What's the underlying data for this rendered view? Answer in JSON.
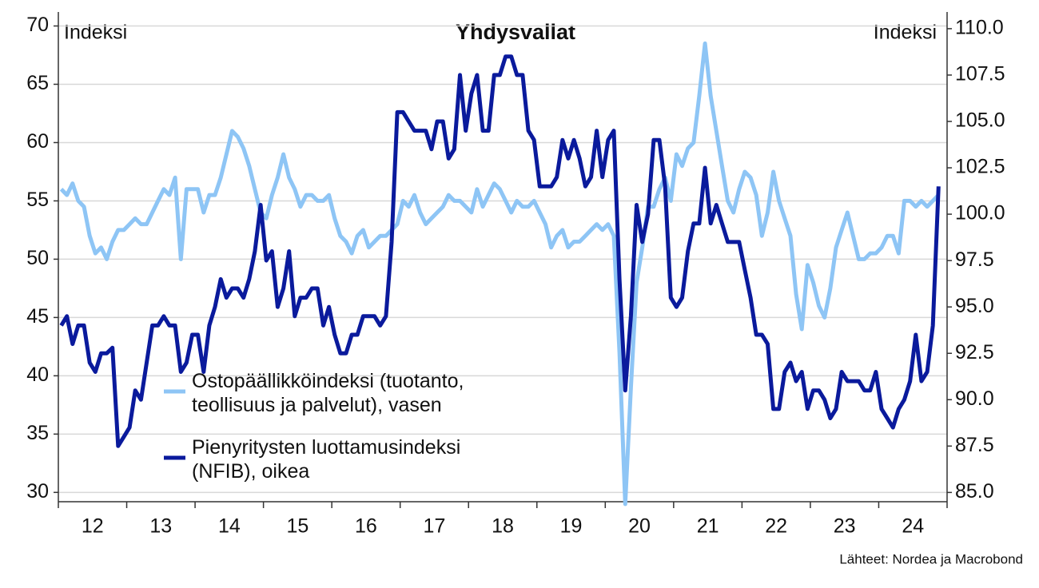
{
  "chart_data": {
    "type": "line",
    "title": "Yhdysvallat",
    "y_label": "Indeksi",
    "y2_label": "Indeksi",
    "source": "Lähteet: Nordea ja Macrobond",
    "categories": [
      null,
      null,
      null,
      null,
      null,
      null,
      "12",
      null,
      null,
      null,
      null,
      null,
      null,
      null,
      null,
      null,
      null,
      null,
      "13",
      null,
      null,
      null,
      null,
      null,
      null,
      null,
      null,
      null,
      null,
      null,
      "14",
      null,
      null,
      null,
      null,
      null,
      null,
      null,
      null,
      null,
      null,
      null,
      "15",
      null,
      null,
      null,
      null,
      null,
      null,
      null,
      null,
      null,
      null,
      null,
      "16",
      null,
      null,
      null,
      null,
      null,
      null,
      null,
      null,
      null,
      null,
      null,
      "17",
      null,
      null,
      null,
      null,
      null,
      null,
      null,
      null,
      null,
      null,
      null,
      "18",
      null,
      null,
      null,
      null,
      null,
      null,
      null,
      null,
      null,
      null,
      null,
      "19",
      null,
      null,
      null,
      null,
      null,
      null,
      null,
      null,
      null,
      null,
      null,
      "20",
      null,
      null,
      null,
      null,
      null,
      null,
      null,
      null,
      null,
      null,
      null,
      "21",
      null,
      null,
      null,
      null,
      null,
      null,
      null,
      null,
      null,
      null,
      null,
      "22",
      null,
      null,
      null,
      null,
      null,
      null,
      null,
      null,
      null,
      null,
      null,
      "23",
      null,
      null,
      null,
      null,
      null,
      null,
      null,
      null,
      null,
      null,
      null,
      "24",
      null,
      null,
      null,
      null
    ],
    "series": [
      {
        "name": "Ostopäällikköindeksi (tuotanto, teollisuus ja palvelut), vasen",
        "color": "#8ec5f5",
        "axis": "y",
        "values": [
          56,
          55.5,
          56.5,
          55,
          54.5,
          52,
          50.5,
          51,
          50,
          51.5,
          52.5,
          52.5,
          53,
          53.5,
          53,
          53,
          54,
          55,
          56,
          55.5,
          57,
          50,
          56,
          56,
          56,
          54,
          55.5,
          55.5,
          57,
          59,
          61,
          60.5,
          59.5,
          58,
          56,
          54,
          53.5,
          55.5,
          57,
          59,
          57,
          56,
          54.5,
          55.5,
          55.5,
          55,
          55,
          55.5,
          53.5,
          52,
          51.5,
          50.5,
          52,
          52.5,
          51,
          51.5,
          52,
          52,
          52.5,
          53,
          55,
          54.5,
          55.5,
          54,
          53,
          53.5,
          54,
          54.5,
          55.5,
          55,
          55,
          54.5,
          54,
          56,
          54.5,
          55.5,
          56.5,
          56,
          55,
          54,
          55,
          54.5,
          54.5,
          55,
          54,
          53,
          51,
          52,
          52.5,
          51,
          51.5,
          51.5,
          52,
          52.5,
          53,
          52.5,
          53,
          52,
          42,
          29,
          39,
          48,
          51,
          54.5,
          54.5,
          56,
          57,
          55,
          59,
          58,
          59.5,
          60,
          64,
          68.5,
          64,
          61,
          58,
          55,
          54,
          56,
          57.5,
          57,
          55.5,
          52,
          54,
          57.5,
          55,
          53.5,
          52,
          47,
          44,
          49.5,
          48,
          46,
          45,
          47.5,
          51,
          52.5,
          54,
          52,
          50,
          50,
          50.5,
          50.5,
          51,
          52,
          52,
          50.5,
          55,
          55,
          54.5,
          55,
          54.5,
          55,
          55.5
        ]
      },
      {
        "name": "Pienyritysten luottamusindeksi (NFIB), oikea",
        "color": "#0a1a9c",
        "axis": "y2",
        "values": [
          94,
          94.5,
          93,
          94,
          94,
          92,
          91.5,
          92.5,
          92.5,
          92.8,
          87.5,
          88,
          88.5,
          90.5,
          90,
          92,
          94,
          94,
          94.5,
          94,
          94,
          91.5,
          92,
          93.5,
          93.5,
          91.5,
          94,
          95,
          96.5,
          95.5,
          96,
          96,
          95.5,
          96.5,
          98,
          100.5,
          97.5,
          98,
          95,
          96,
          98,
          94.5,
          95.5,
          95.5,
          96,
          96,
          94,
          95,
          93.5,
          92.5,
          92.5,
          93.5,
          93.5,
          94.5,
          94.5,
          94.5,
          94,
          94.5,
          98.5,
          105.5,
          105.5,
          105,
          104.5,
          104.5,
          104.5,
          103.5,
          105,
          105,
          103,
          103.5,
          107.5,
          104.5,
          106.5,
          107.5,
          104.5,
          104.5,
          107.5,
          107.5,
          108.5,
          108.5,
          107.5,
          107.5,
          104.5,
          104,
          101.5,
          101.5,
          101.5,
          102,
          104,
          103,
          104,
          103,
          101.5,
          102,
          104.5,
          102,
          104,
          104.5,
          96.5,
          90.5,
          94.5,
          100.5,
          98.5,
          100,
          104,
          104,
          101.5,
          95.5,
          95,
          95.5,
          98,
          99.5,
          99.5,
          102.5,
          99.5,
          100.5,
          99.5,
          98.5,
          98.5,
          98.5,
          97,
          95.5,
          93.5,
          93.5,
          93,
          89.5,
          89.5,
          91.5,
          92,
          91,
          91.5,
          89.5,
          90.5,
          90.5,
          90,
          89,
          89.5,
          91.5,
          91,
          91,
          91,
          90.5,
          90.5,
          91.5,
          89.5,
          89,
          88.5,
          89.5,
          90,
          91,
          93.5,
          91,
          91.5,
          94,
          101.5
        ]
      }
    ],
    "ylim": [
      29.2,
      71.2
    ],
    "yticks": [
      30,
      35,
      40,
      45,
      50,
      55,
      60,
      65,
      70
    ],
    "y2lim": [
      84.5,
      110.9
    ],
    "y2ticks": [
      {
        "value": 85,
        "label": "85.0"
      },
      {
        "value": 87.5,
        "label": "87.5"
      },
      {
        "value": 90,
        "label": "90.0"
      },
      {
        "value": 92.5,
        "label": "92.5"
      },
      {
        "value": 95,
        "label": "95.0"
      },
      {
        "value": 97.5,
        "label": "97.5"
      },
      {
        "value": 100,
        "label": "100.0"
      },
      {
        "value": 102.5,
        "label": "102.5"
      },
      {
        "value": 105,
        "label": "105.0"
      },
      {
        "value": 107.5,
        "label": "107.5"
      },
      {
        "value": 110,
        "label": "110.0"
      }
    ],
    "grid": true
  }
}
